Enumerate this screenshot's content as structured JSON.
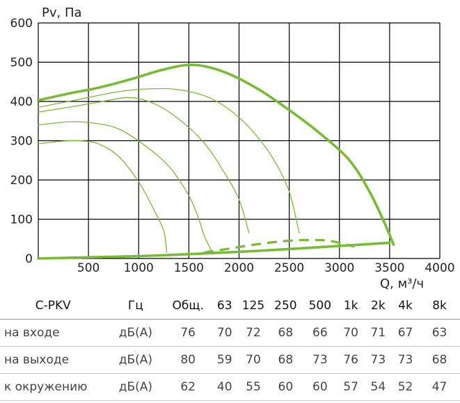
{
  "chart_data": {
    "type": "line",
    "ylabel": "Pv, Па",
    "xlabel": "Q, м³/ч",
    "xlim": [
      0,
      4000
    ],
    "ylim": [
      0,
      600
    ],
    "x_ticks": [
      "500",
      "1000",
      "1500",
      "2000",
      "2500",
      "3000",
      "3500",
      "4000"
    ],
    "y_ticks": [
      "0",
      "100",
      "200",
      "300",
      "400",
      "500",
      "600"
    ],
    "grid": true,
    "colors": {
      "curve": "#77bb33",
      "grid": "#000000"
    },
    "series": [
      {
        "style": "thick",
        "points": [
          [
            0,
            403
          ],
          [
            300,
            420
          ],
          [
            600,
            435
          ],
          [
            900,
            455
          ],
          [
            1200,
            478
          ],
          [
            1450,
            492
          ],
          [
            1650,
            490
          ],
          [
            1900,
            470
          ],
          [
            2200,
            430
          ],
          [
            2500,
            378
          ],
          [
            2800,
            320
          ],
          [
            3100,
            250
          ],
          [
            3300,
            170
          ],
          [
            3450,
            90
          ],
          [
            3540,
            35
          ]
        ]
      },
      {
        "style": "thin",
        "points": [
          [
            0,
            385
          ],
          [
            400,
            405
          ],
          [
            800,
            425
          ],
          [
            1100,
            432
          ],
          [
            1400,
            430
          ],
          [
            1700,
            410
          ],
          [
            1950,
            370
          ],
          [
            2150,
            320
          ],
          [
            2350,
            250
          ],
          [
            2500,
            170
          ],
          [
            2600,
            65
          ]
        ]
      },
      {
        "style": "thin",
        "points": [
          [
            0,
            373
          ],
          [
            300,
            385
          ],
          [
            600,
            398
          ],
          [
            900,
            410
          ],
          [
            1150,
            395
          ],
          [
            1400,
            355
          ],
          [
            1650,
            295
          ],
          [
            1850,
            220
          ],
          [
            2000,
            150
          ],
          [
            2100,
            65
          ]
        ]
      },
      {
        "style": "thin",
        "points": [
          [
            0,
            340
          ],
          [
            300,
            348
          ],
          [
            550,
            345
          ],
          [
            800,
            330
          ],
          [
            1050,
            290
          ],
          [
            1300,
            235
          ],
          [
            1500,
            160
          ],
          [
            1600,
            100
          ],
          [
            1650,
            60
          ],
          [
            1720,
            22
          ]
        ]
      },
      {
        "style": "thin",
        "points": [
          [
            0,
            292
          ],
          [
            200,
            298
          ],
          [
            400,
            300
          ],
          [
            600,
            292
          ],
          [
            800,
            260
          ],
          [
            1000,
            195
          ],
          [
            1150,
            125
          ],
          [
            1250,
            70
          ],
          [
            1280,
            15
          ]
        ]
      },
      {
        "style": "thick",
        "points": [
          [
            0,
            0
          ],
          [
            500,
            3
          ],
          [
            1000,
            6
          ],
          [
            1500,
            11
          ],
          [
            2000,
            17
          ],
          [
            2500,
            24
          ],
          [
            3000,
            32
          ],
          [
            3500,
            40
          ]
        ]
      },
      {
        "style": "dashed",
        "points": [
          [
            1650,
            15
          ],
          [
            1900,
            25
          ],
          [
            2150,
            35
          ],
          [
            2400,
            43
          ],
          [
            2650,
            47
          ],
          [
            2900,
            45
          ],
          [
            3150,
            30
          ]
        ]
      }
    ]
  },
  "table": {
    "model": "C-PKV",
    "unit_header": "Гц",
    "headers": [
      "Общ.",
      "63",
      "125",
      "250",
      "500",
      "1k",
      "2k",
      "4k",
      "8k"
    ],
    "rows": [
      {
        "label": "на входе",
        "unit": "дБ(А)",
        "values": [
          "76",
          "70",
          "72",
          "68",
          "66",
          "70",
          "71",
          "67",
          "63"
        ]
      },
      {
        "label": "на выходе",
        "unit": "дБ(А)",
        "values": [
          "80",
          "59",
          "70",
          "68",
          "73",
          "76",
          "73",
          "73",
          "68"
        ]
      },
      {
        "label": "к окружению",
        "unit": "дБ(А)",
        "values": [
          "62",
          "40",
          "55",
          "60",
          "60",
          "57",
          "54",
          "52",
          "47"
        ]
      }
    ]
  }
}
